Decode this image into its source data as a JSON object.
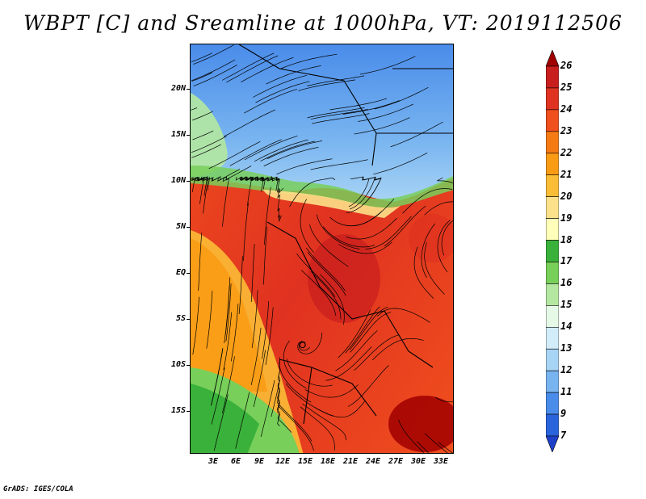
{
  "title": "WBPT [C] and Sreamline at 1000hPa, VT: 2019112506",
  "credit": "GrADS: IGES/COLA",
  "map": {
    "lat_labels": [
      "20N",
      "15N",
      "10N",
      "5N",
      "EQ",
      "5S",
      "10S",
      "15S"
    ],
    "lon_labels": [
      "3E",
      "6E",
      "9E",
      "12E",
      "15E",
      "18E",
      "21E",
      "24E",
      "27E",
      "30E",
      "33E"
    ]
  },
  "colorbar": {
    "levels": [
      "26",
      "25",
      "24",
      "23",
      "22",
      "21",
      "20",
      "19",
      "18",
      "17",
      "16",
      "15",
      "14",
      "13",
      "12",
      "11",
      "9",
      "7"
    ],
    "colors": [
      "#a00000",
      "#c81e1e",
      "#e03220",
      "#f04f1e",
      "#f57a14",
      "#fa9b14",
      "#fbbd35",
      "#fde18a",
      "#ffffb9",
      "#3ab13a",
      "#78cf5a",
      "#b4e8a0",
      "#e6f9e6",
      "#d2ecfa",
      "#a8d4f5",
      "#78b4f0",
      "#4a8cea",
      "#2a64dc",
      "#1e40c8"
    ]
  }
}
